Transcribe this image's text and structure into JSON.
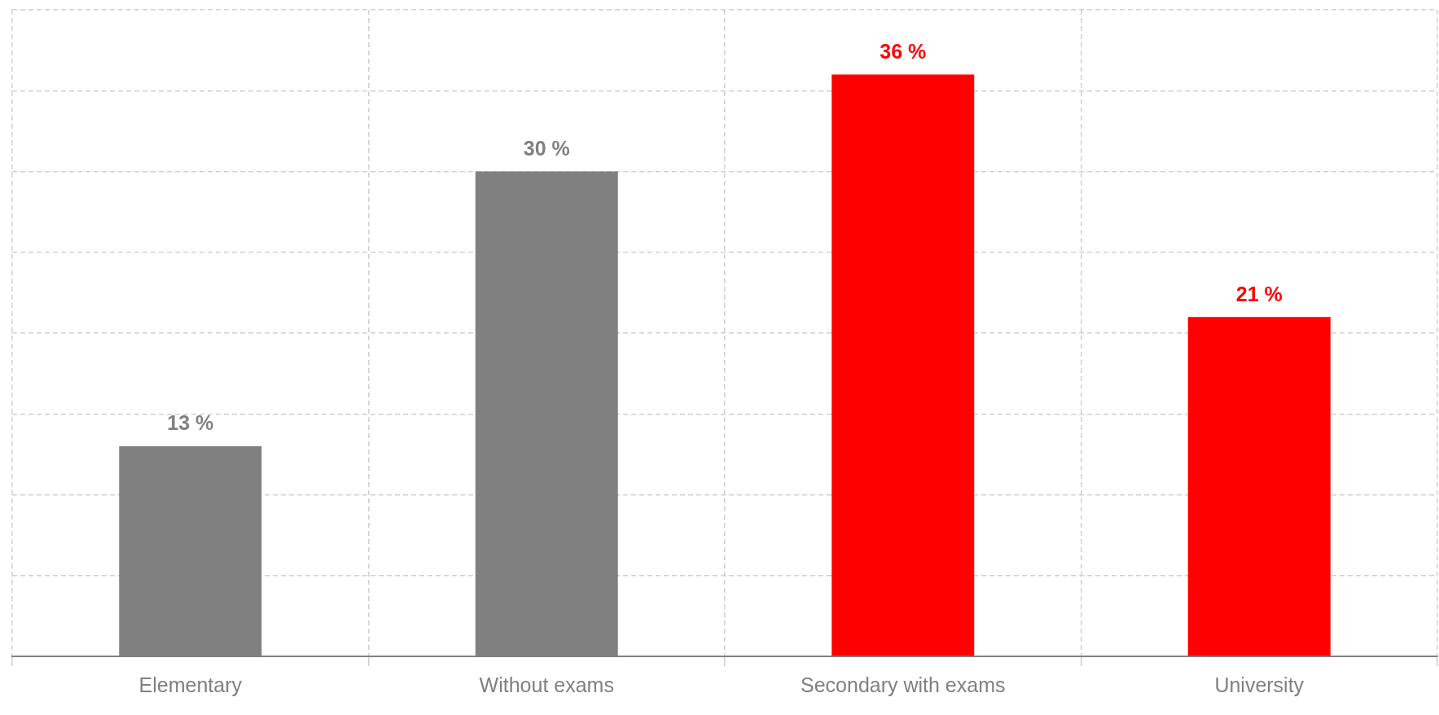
{
  "chart_data": {
    "type": "bar",
    "categories": [
      "Elementary",
      "Without exams",
      "Secondary with exams",
      "University"
    ],
    "values": [
      13,
      30,
      36,
      21
    ],
    "colors": [
      "#808080",
      "#808080",
      "#ff0000",
      "#ff0000"
    ],
    "value_labels": [
      "13 %",
      "30 %",
      "36 %",
      "21 %"
    ],
    "ylim": [
      0,
      40
    ],
    "yticks": [
      {
        "value": 0,
        "label": null
      },
      {
        "value": 5,
        "label": null
      },
      {
        "value": 10,
        "label": null
      },
      {
        "value": 15,
        "label": null
      },
      {
        "value": 20,
        "label": null
      },
      {
        "value": 25,
        "label": null
      },
      {
        "value": 30,
        "label": null
      },
      {
        "value": 35,
        "label": null
      },
      {
        "value": 40,
        "label": null
      }
    ],
    "tick_labels": "x",
    "grid": true
  }
}
